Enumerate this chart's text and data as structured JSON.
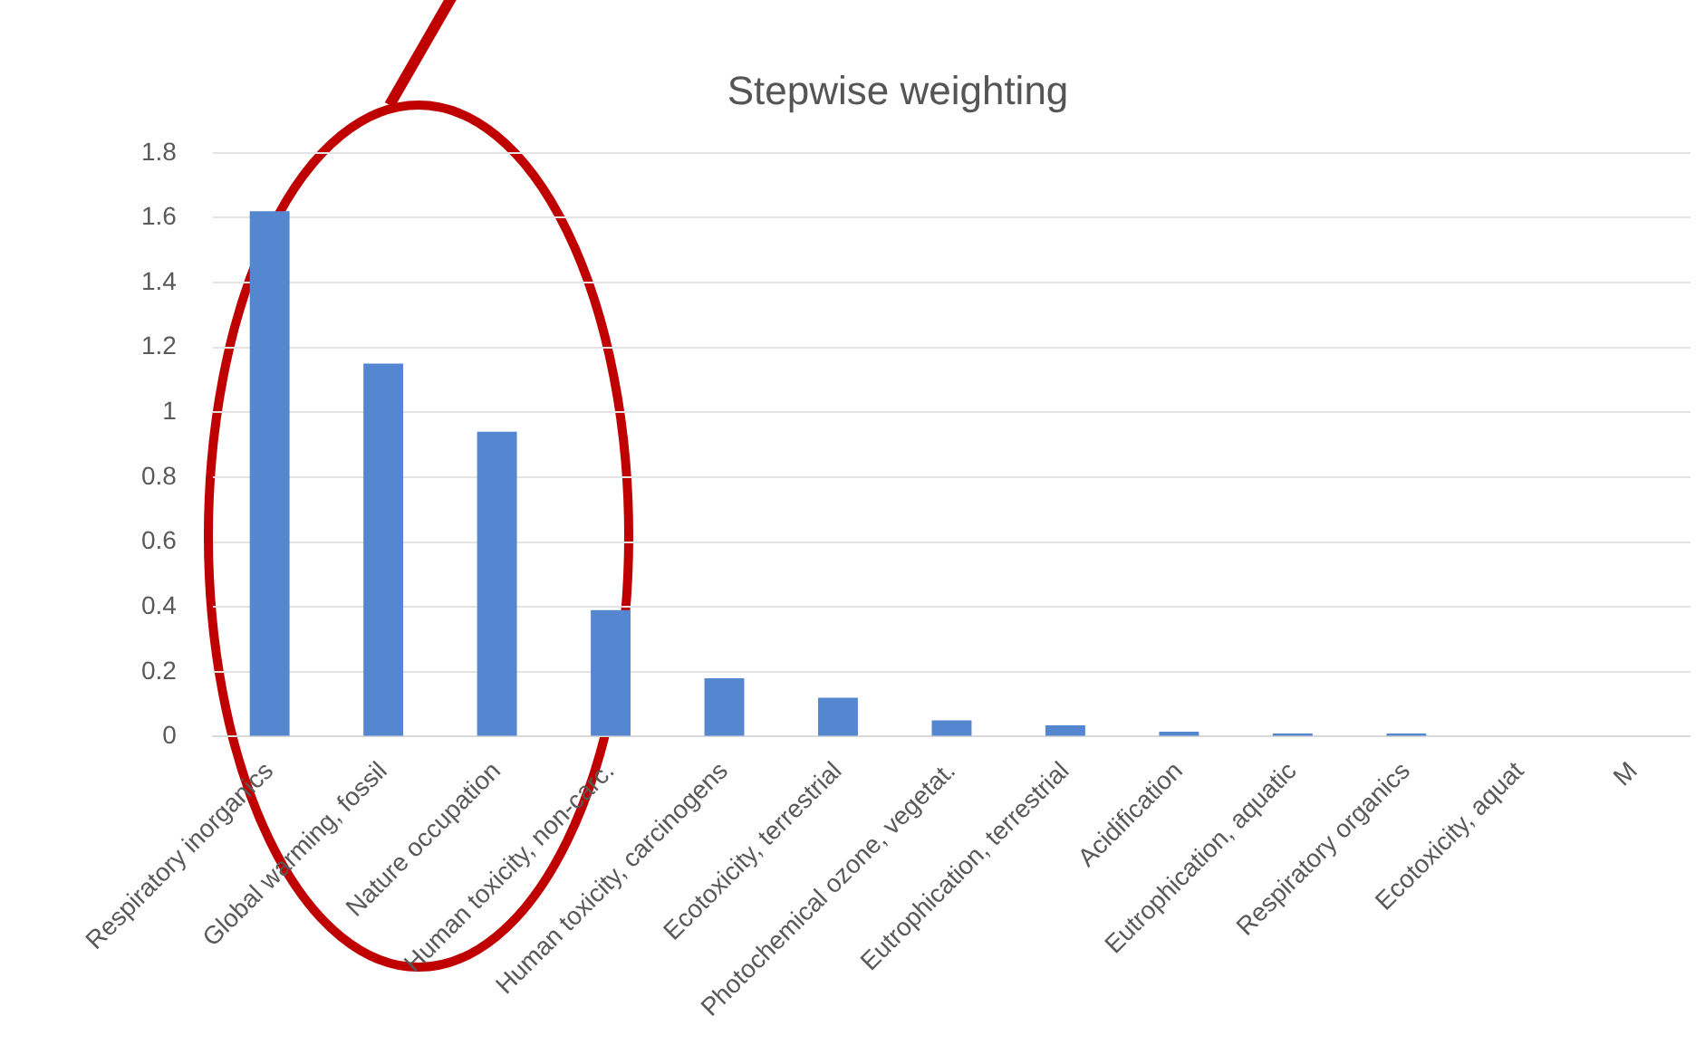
{
  "chart_data": {
    "type": "bar",
    "title": "Stepwise weighting",
    "categories": [
      "Respiratory inorganics",
      "Global warming, fossil",
      "Nature occupation",
      "Human toxicity, non-carc.",
      "Human toxicity, carcinogens",
      "Ecotoxicity, terrestrial",
      "Photochemical ozone, vegetat.",
      "Eutrophication, terrestrial",
      "Acidification",
      "Eutrophication, aquatic",
      "Respiratory organics",
      "Ecotoxicity, aquat",
      "M"
    ],
    "values": [
      1.62,
      1.15,
      0.94,
      0.39,
      0.18,
      0.12,
      0.05,
      0.035,
      0.015,
      0.01,
      0.01,
      null,
      null
    ],
    "color": "#5487d0",
    "ylim": [
      0,
      1.8
    ],
    "yticks": [
      0,
      0.2,
      0.4,
      0.6,
      0.8,
      1,
      1.2,
      1.4,
      1.6,
      1.8
    ],
    "grid": "y"
  }
}
